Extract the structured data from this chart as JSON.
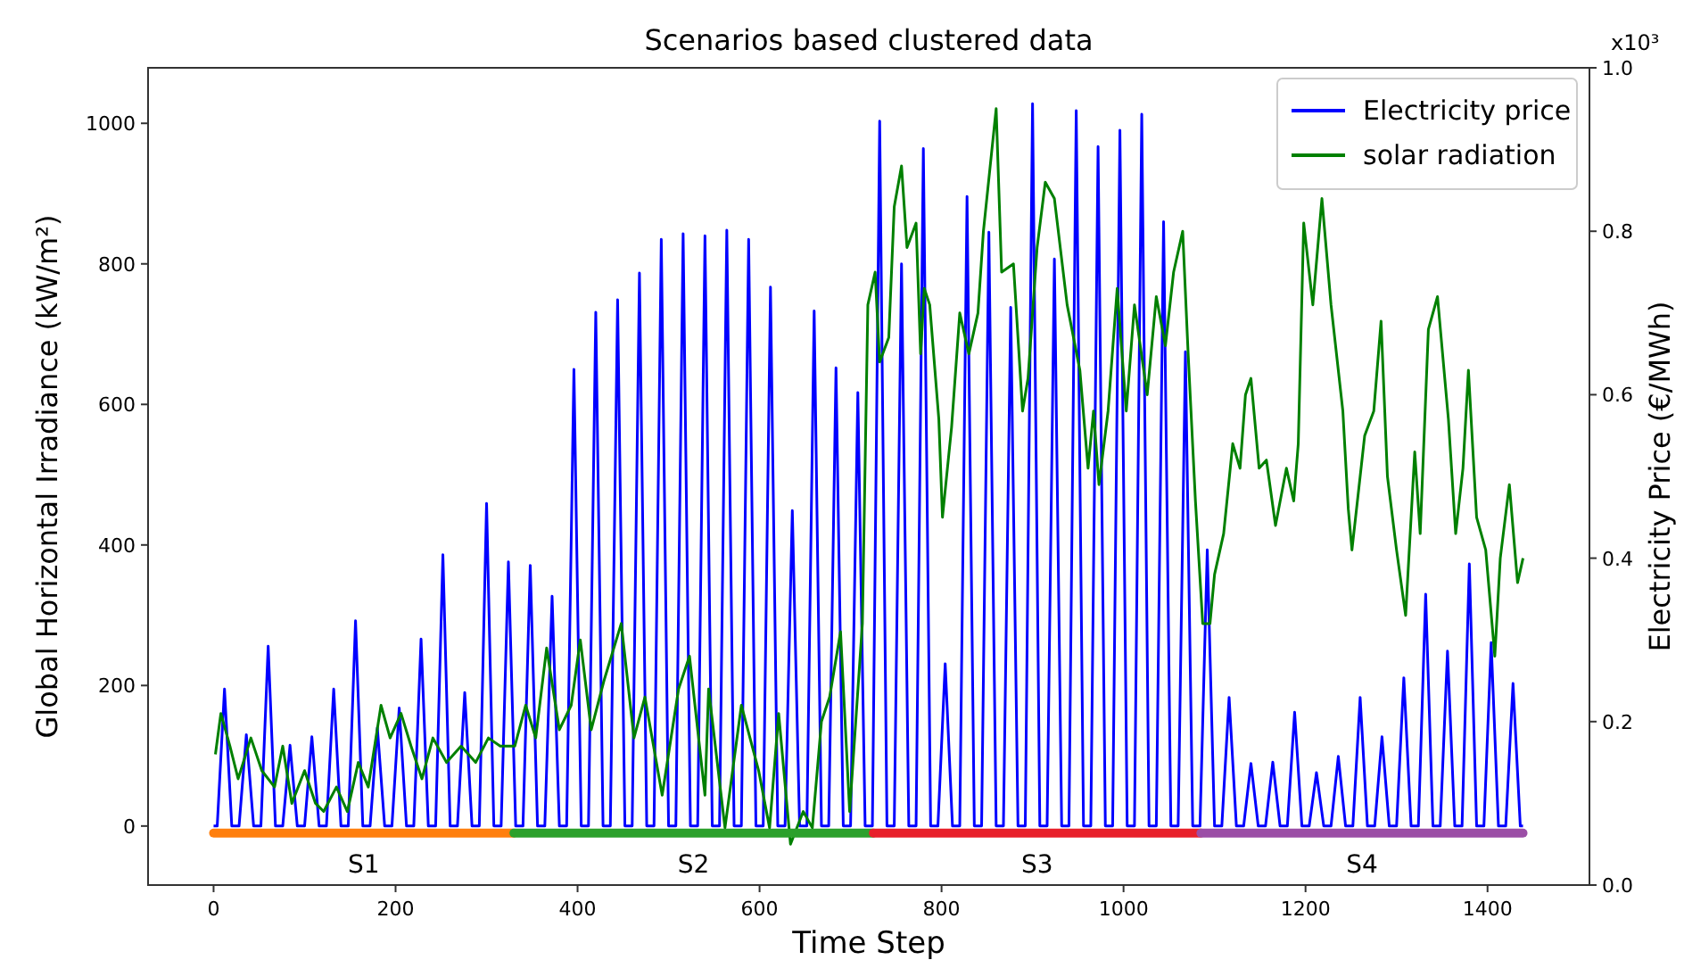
{
  "chart_data": {
    "type": "line",
    "title": "Scenarios based clustered data",
    "xlabel": "Time Step",
    "ylabel": "Global Horizontal Irradiance (kW/m²)",
    "y2label": "Electricity Price (€/MWh)",
    "annotations": [
      "x10³"
    ],
    "xlim": [
      -72,
      1512
    ],
    "xticks": [
      0,
      200,
      400,
      600,
      800,
      1000,
      1200,
      1400
    ],
    "ylim": [
      -84,
      1079
    ],
    "yticks": [
      0,
      200,
      400,
      600,
      800,
      1000
    ],
    "y2lim": [
      0,
      1
    ],
    "y2ticks": [
      {
        "value": 0,
        "label": "0.0"
      },
      0.2,
      0.4,
      0.6,
      0.8,
      {
        "value": 1,
        "label": "1.0"
      }
    ],
    "legend": "top right",
    "grid": false,
    "series": [
      {
        "name": "Electricity price",
        "color": "#0000ff",
        "x": [
          0,
          4,
          12,
          20,
          28,
          36,
          44,
          52,
          60,
          68,
          76,
          84,
          92,
          100,
          108,
          116,
          124,
          132,
          140,
          148,
          156,
          164,
          172,
          180,
          188,
          196,
          204,
          212,
          220,
          228,
          236,
          244,
          252,
          260,
          268,
          276,
          284,
          292,
          300,
          308,
          316,
          324,
          332,
          340,
          348,
          356,
          364,
          372,
          380,
          388,
          396,
          404,
          412,
          420,
          428,
          436,
          444,
          452,
          460,
          468,
          476,
          484,
          492,
          500,
          508,
          516,
          524,
          532,
          540,
          548,
          556,
          564,
          572,
          580,
          588,
          596,
          604,
          612,
          620,
          628,
          636,
          644,
          652,
          660,
          668,
          676,
          684,
          692,
          700,
          708,
          716,
          724,
          732,
          740,
          748,
          756,
          764,
          772,
          780,
          788,
          796,
          804,
          812,
          820,
          828,
          836,
          844,
          852,
          860,
          868,
          876,
          884,
          892,
          900,
          908,
          916,
          924,
          932,
          940,
          948,
          956,
          964,
          972,
          980,
          988,
          996,
          1004,
          1012,
          1020,
          1028,
          1036,
          1044,
          1052,
          1060,
          1068,
          1076,
          1084,
          1092,
          1100,
          1108,
          1116,
          1124,
          1132,
          1140,
          1148,
          1156,
          1164,
          1172,
          1180,
          1188,
          1196,
          1204,
          1212,
          1220,
          1228,
          1236,
          1244,
          1252,
          1260,
          1268,
          1276,
          1284,
          1292,
          1300,
          1308,
          1316,
          1324,
          1332,
          1340,
          1348,
          1356,
          1364,
          1372,
          1380,
          1388,
          1396,
          1404,
          1412,
          1420,
          1428,
          1436,
          1439
        ],
        "values": [
          0,
          0,
          195,
          0,
          0,
          130,
          0,
          0,
          256,
          0,
          0,
          115,
          0,
          0,
          127,
          0,
          0,
          195,
          0,
          0,
          292,
          0,
          0,
          140,
          0,
          0,
          168,
          0,
          0,
          266,
          0,
          0,
          386,
          0,
          0,
          190,
          0,
          0,
          459,
          0,
          0,
          376,
          0,
          0,
          371,
          0,
          0,
          327,
          0,
          0,
          650,
          0,
          0,
          731,
          0,
          0,
          749,
          0,
          0,
          787,
          0,
          0,
          835,
          0,
          0,
          843,
          0,
          0,
          840,
          0,
          0,
          848,
          0,
          0,
          835,
          0,
          0,
          767,
          0,
          0,
          449,
          0,
          0,
          733,
          0,
          0,
          652,
          0,
          0,
          617,
          0,
          0,
          1003,
          0,
          0,
          800,
          0,
          0,
          964,
          0,
          0,
          231,
          0,
          0,
          896,
          0,
          0,
          845,
          0,
          0,
          738,
          0,
          0,
          1028,
          0,
          0,
          807,
          0,
          0,
          1018,
          0,
          0,
          967,
          0,
          0,
          990,
          0,
          0,
          1013,
          0,
          0,
          860,
          0,
          0,
          675,
          0,
          0,
          393,
          0,
          0,
          183,
          0,
          0,
          89,
          0,
          0,
          91,
          0,
          0,
          162,
          0,
          0,
          76,
          0,
          0,
          99,
          0,
          0,
          183,
          0,
          0,
          127,
          0,
          0,
          211,
          0,
          0,
          330,
          0,
          0,
          249,
          0,
          0,
          373,
          0,
          0,
          261,
          0,
          0,
          203,
          0,
          0
        ]
      },
      {
        "name": "solar radiation",
        "color": "#008000",
        "axis": "y2",
        "x": [
          2,
          8,
          18,
          27,
          41,
          53,
          67,
          76,
          86,
          100,
          112,
          121,
          135,
          147,
          159,
          170,
          184,
          194,
          206,
          217,
          229,
          241,
          256,
          272,
          288,
          302,
          315,
          331,
          343,
          354,
          366,
          380,
          393,
          403,
          415,
          429,
          448,
          462,
          474,
          493,
          511,
          523,
          540,
          544,
          562,
          580,
          599,
          611,
          621,
          634,
          648,
          658,
          668,
          677,
          689,
          699,
          713,
          719,
          727,
          732,
          742,
          748,
          756,
          762,
          772,
          777,
          781,
          787,
          797,
          801,
          811,
          820,
          830,
          840,
          846,
          860,
          866,
          879,
          889,
          895,
          905,
          914,
          924,
          938,
          952,
          961,
          967,
          973,
          983,
          993,
          1003,
          1012,
          1026,
          1036,
          1046,
          1055,
          1065,
          1071,
          1079,
          1087,
          1095,
          1100,
          1110,
          1120,
          1128,
          1134,
          1140,
          1149,
          1157,
          1167,
          1179,
          1187,
          1192,
          1198,
          1208,
          1218,
          1228,
          1241,
          1247,
          1251,
          1265,
          1275,
          1283,
          1290,
          1300,
          1310,
          1320,
          1326,
          1335,
          1345,
          1357,
          1365,
          1373,
          1379,
          1388,
          1398,
          1408,
          1414,
          1424,
          1433,
          1439
        ],
        "values": [
          0.16,
          0.21,
          0.17,
          0.13,
          0.18,
          0.14,
          0.12,
          0.17,
          0.1,
          0.14,
          0.1,
          0.09,
          0.12,
          0.09,
          0.15,
          0.12,
          0.22,
          0.18,
          0.21,
          0.17,
          0.13,
          0.18,
          0.15,
          0.17,
          0.15,
          0.18,
          0.17,
          0.17,
          0.22,
          0.18,
          0.29,
          0.19,
          0.22,
          0.3,
          0.19,
          0.25,
          0.32,
          0.18,
          0.23,
          0.11,
          0.24,
          0.28,
          0.11,
          0.24,
          0.07,
          0.22,
          0.14,
          0.07,
          0.21,
          0.05,
          0.09,
          0.07,
          0.2,
          0.23,
          0.31,
          0.09,
          0.32,
          0.71,
          0.75,
          0.64,
          0.67,
          0.83,
          0.88,
          0.78,
          0.81,
          0.65,
          0.73,
          0.71,
          0.57,
          0.45,
          0.56,
          0.7,
          0.65,
          0.7,
          0.8,
          0.95,
          0.75,
          0.76,
          0.58,
          0.62,
          0.78,
          0.86,
          0.84,
          0.71,
          0.63,
          0.51,
          0.58,
          0.49,
          0.58,
          0.73,
          0.58,
          0.71,
          0.6,
          0.72,
          0.66,
          0.75,
          0.8,
          0.65,
          0.47,
          0.32,
          0.32,
          0.38,
          0.43,
          0.54,
          0.51,
          0.6,
          0.62,
          0.51,
          0.52,
          0.44,
          0.51,
          0.47,
          0.54,
          0.81,
          0.71,
          0.84,
          0.71,
          0.58,
          0.46,
          0.41,
          0.55,
          0.58,
          0.69,
          0.5,
          0.41,
          0.33,
          0.53,
          0.43,
          0.68,
          0.72,
          0.57,
          0.43,
          0.51,
          0.63,
          0.45,
          0.41,
          0.28,
          0.4,
          0.49,
          0.37,
          0.4
        ]
      },
      {
        "name": "S1",
        "color": "#ff7f0e",
        "x": [
          0,
          330
        ],
        "values": [
          -10,
          -10
        ]
      },
      {
        "name": "S2",
        "color": "#2ca02c",
        "x": [
          330,
          725
        ],
        "values": [
          -10,
          -10
        ]
      },
      {
        "name": "S3",
        "color": "#e8202a",
        "x": [
          725,
          1085
        ],
        "values": [
          -10,
          -10
        ]
      },
      {
        "name": "S4",
        "color": "#9b4ea6",
        "x": [
          1085,
          1439
        ],
        "values": [
          -10,
          -10
        ]
      }
    ]
  }
}
